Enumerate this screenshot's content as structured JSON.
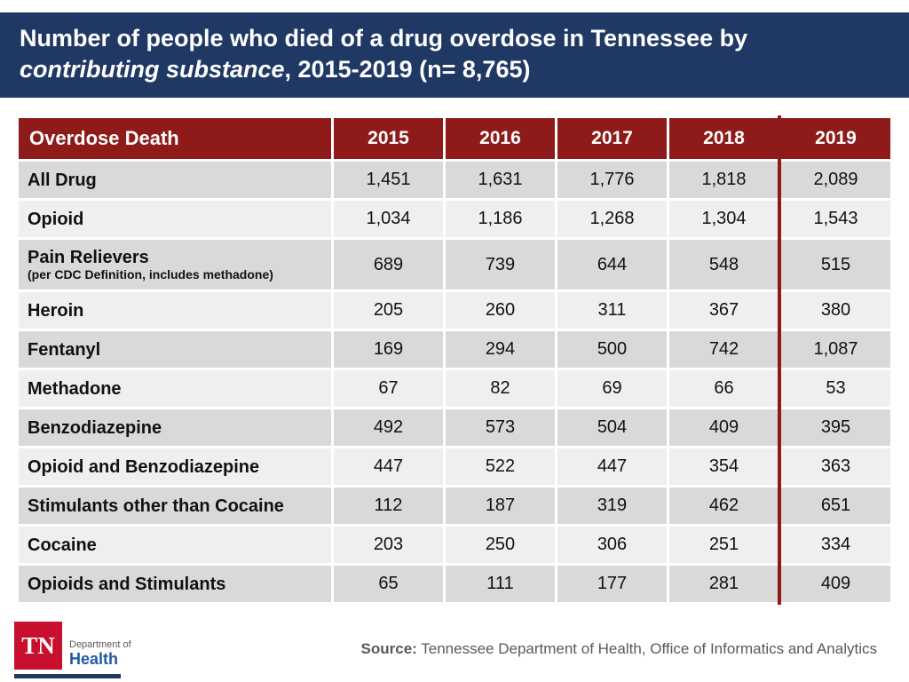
{
  "slide": {
    "title": {
      "line1": "Number of people who died of a drug overdose in Tennessee by",
      "line2_italic": "contributing substance",
      "line2_rest": ", 2015-2019 (n= 8,765)"
    }
  },
  "table": {
    "columns": [
      "Overdose Death",
      "2015",
      "2016",
      "2017",
      "2018",
      "2019"
    ],
    "rows": [
      {
        "label": "All Drug",
        "sublabel": "",
        "values": [
          "1,451",
          "1,631",
          "1,776",
          "1,818",
          "2,089"
        ]
      },
      {
        "label": "Opioid",
        "sublabel": "",
        "values": [
          "1,034",
          "1,186",
          "1,268",
          "1,304",
          "1,543"
        ]
      },
      {
        "label": "Pain Relievers",
        "sublabel": "(per CDC Definition, includes methadone)",
        "values": [
          "689",
          "739",
          "644",
          "548",
          "515"
        ]
      },
      {
        "label": "Heroin",
        "sublabel": "",
        "values": [
          "205",
          "260",
          "311",
          "367",
          "380"
        ]
      },
      {
        "label": "Fentanyl",
        "sublabel": "",
        "values": [
          "169",
          "294",
          "500",
          "742",
          "1,087"
        ]
      },
      {
        "label": "Methadone",
        "sublabel": "",
        "values": [
          "67",
          "82",
          "69",
          "66",
          "53"
        ]
      },
      {
        "label": "Benzodiazepine",
        "sublabel": "",
        "values": [
          "492",
          "573",
          "504",
          "409",
          "395"
        ]
      },
      {
        "label": "Opioid and Benzodiazepine",
        "sublabel": "",
        "values": [
          "447",
          "522",
          "447",
          "354",
          "363"
        ]
      },
      {
        "label": "Stimulants other than Cocaine",
        "sublabel": "",
        "values": [
          "112",
          "187",
          "319",
          "462",
          "651"
        ]
      },
      {
        "label": "Cocaine",
        "sublabel": "",
        "values": [
          "203",
          "250",
          "306",
          "251",
          "334"
        ]
      },
      {
        "label": "Opioids and Stimulants",
        "sublabel": "",
        "values": [
          "65",
          "111",
          "177",
          "281",
          "409"
        ]
      }
    ]
  },
  "footer": {
    "source_label": "Source:",
    "source_text": " Tennessee Department of Health, Office of Informatics and Analytics",
    "logo": {
      "abbr": "TN",
      "dept": "Department of",
      "name": "Health"
    }
  },
  "colors": {
    "title_navy": "#1F3864",
    "header_maroon": "#8F1A1A",
    "row_dark": "#D9D9D9",
    "row_light": "#EFEFEF",
    "source_gray": "#595959",
    "logo_red": "#C8102E",
    "logo_blue": "#1F5AA0"
  },
  "chart_data": {
    "type": "table",
    "title": "Number of people who died of a drug overdose in Tennessee by contributing substance, 2015-2019 (n= 8,765)",
    "categories": [
      "2015",
      "2016",
      "2017",
      "2018",
      "2019"
    ],
    "series": [
      {
        "name": "All Drug",
        "values": [
          1451,
          1631,
          1776,
          1818,
          2089
        ]
      },
      {
        "name": "Opioid",
        "values": [
          1034,
          1186,
          1268,
          1304,
          1543
        ]
      },
      {
        "name": "Pain Relievers (per CDC Definition, includes methadone)",
        "values": [
          689,
          739,
          644,
          548,
          515
        ]
      },
      {
        "name": "Heroin",
        "values": [
          205,
          260,
          311,
          367,
          380
        ]
      },
      {
        "name": "Fentanyl",
        "values": [
          169,
          294,
          500,
          742,
          1087
        ]
      },
      {
        "name": "Methadone",
        "values": [
          67,
          82,
          69,
          66,
          53
        ]
      },
      {
        "name": "Benzodiazepine",
        "values": [
          492,
          573,
          504,
          409,
          395
        ]
      },
      {
        "name": "Opioid and Benzodiazepine",
        "values": [
          447,
          522,
          447,
          354,
          363
        ]
      },
      {
        "name": "Stimulants other than Cocaine",
        "values": [
          112,
          187,
          319,
          462,
          651
        ]
      },
      {
        "name": "Cocaine",
        "values": [
          203,
          250,
          306,
          251,
          334
        ]
      },
      {
        "name": "Opioids and Stimulants",
        "values": [
          65,
          111,
          177,
          281,
          409
        ]
      }
    ],
    "total_n": 8765
  }
}
